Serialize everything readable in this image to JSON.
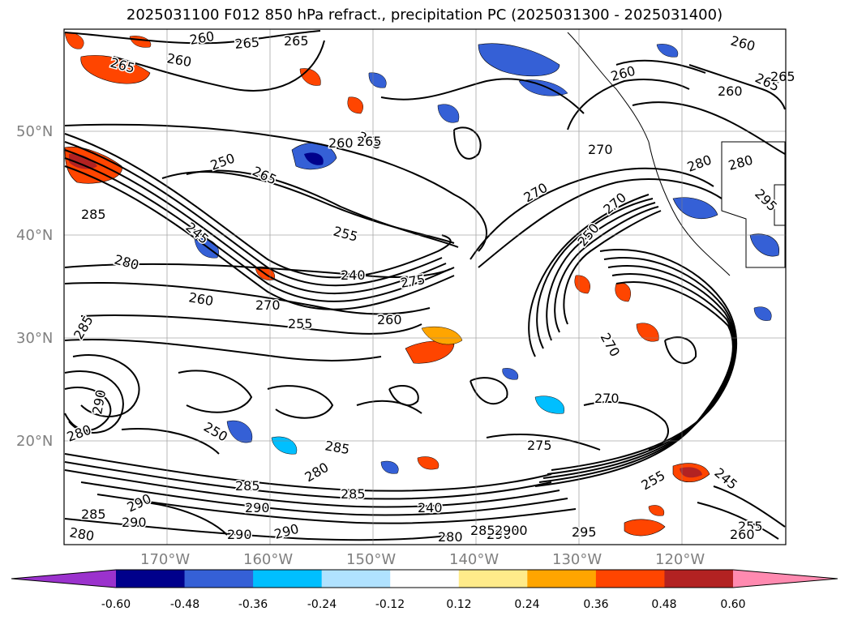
{
  "title": "2025031100 F012 850 hPa refract., precipitation PC (2025031300 - 2025031400)",
  "map": {
    "lat_labels": [
      "50°N",
      "40°N",
      "30°N",
      "20°N"
    ],
    "lon_labels": [
      "170°W",
      "160°W",
      "150°W",
      "140°W",
      "130°W",
      "120°W"
    ],
    "lat_values": [
      50,
      40,
      30,
      20
    ],
    "lon_values": [
      -170,
      -160,
      -150,
      -140,
      -130,
      -120
    ],
    "extent": {
      "lon_min": -180,
      "lon_max": -110,
      "lat_min": 10,
      "lat_max": 60
    },
    "contour_labels": [
      "265",
      "260",
      "265",
      "260",
      "265",
      "265",
      "260",
      "265",
      "260",
      "250",
      "265",
      "260",
      "260",
      "270",
      "285",
      "255",
      "270",
      "240",
      "275",
      "245",
      "280",
      "260",
      "270",
      "255",
      "260",
      "270",
      "270",
      "265",
      "245",
      "250",
      "270",
      "275",
      "255",
      "250",
      "285",
      "280",
      "290",
      "285",
      "280",
      "285",
      "290",
      "280",
      "240",
      "285",
      "290",
      "295",
      "255",
      "260",
      "290",
      "280",
      "290",
      "275",
      "280",
      "285",
      "290",
      "295",
      "280",
      "280",
      "285",
      "290",
      "265",
      "290"
    ]
  },
  "colorbar": {
    "colors": [
      "#9b32cd",
      "#00008b",
      "#3560d6",
      "#00bfff",
      "#b0e2ff",
      "#ffffff",
      "#ffeb8a",
      "#ffa500",
      "#ff4500",
      "#b22222",
      "#ff8ab0"
    ],
    "ticks": [
      "-0.60",
      "-0.48",
      "-0.36",
      "-0.24",
      "-0.12",
      "0.12",
      "0.24",
      "0.36",
      "0.48",
      "0.60"
    ]
  }
}
